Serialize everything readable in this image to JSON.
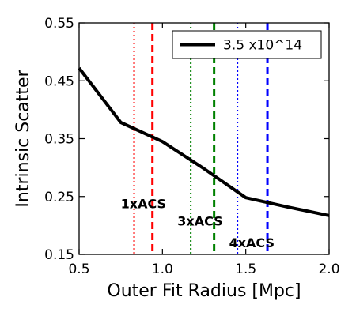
{
  "chart_data": {
    "type": "line",
    "xlabel": "Outer Fit Radius [Mpc]",
    "ylabel": "Intrinsic Scatter",
    "xlim": [
      0.5,
      2.0
    ],
    "ylim": [
      0.15,
      0.55
    ],
    "xticks": [
      "0.5",
      "1.0",
      "1.5",
      "2.0"
    ],
    "yticks": [
      "0.15",
      "0.25",
      "0.35",
      "0.45",
      "0.55"
    ],
    "x_tick_values": [
      0.5,
      1.0,
      1.5,
      2.0
    ],
    "y_tick_values": [
      0.15,
      0.25,
      0.35,
      0.45,
      0.55
    ],
    "series": [
      {
        "name": "3.5 x10^14",
        "color": "#000000",
        "x": [
          0.5,
          0.75,
          1.0,
          1.25,
          1.5,
          1.75,
          2.0
        ],
        "y": [
          0.472,
          0.378,
          0.345,
          0.298,
          0.248,
          0.232,
          0.217
        ]
      }
    ],
    "vertical_lines": [
      {
        "x": 0.83,
        "style": "dotted",
        "color": "#ff0000"
      },
      {
        "x": 0.94,
        "style": "dashed",
        "color": "#ff0000"
      },
      {
        "x": 1.17,
        "style": "dotted",
        "color": "#008000"
      },
      {
        "x": 1.31,
        "style": "dashed",
        "color": "#008000"
      },
      {
        "x": 1.45,
        "style": "dotted",
        "color": "#0000ff"
      },
      {
        "x": 1.63,
        "style": "dashed",
        "color": "#0000ff"
      }
    ],
    "annotations": [
      {
        "text": "1xACS",
        "x": 0.75,
        "y": 0.23
      },
      {
        "text": "3xACS",
        "x": 1.09,
        "y": 0.2
      },
      {
        "text": "4xACS",
        "x": 1.4,
        "y": 0.162
      }
    ],
    "legend_position": "top-right",
    "grid": false
  }
}
